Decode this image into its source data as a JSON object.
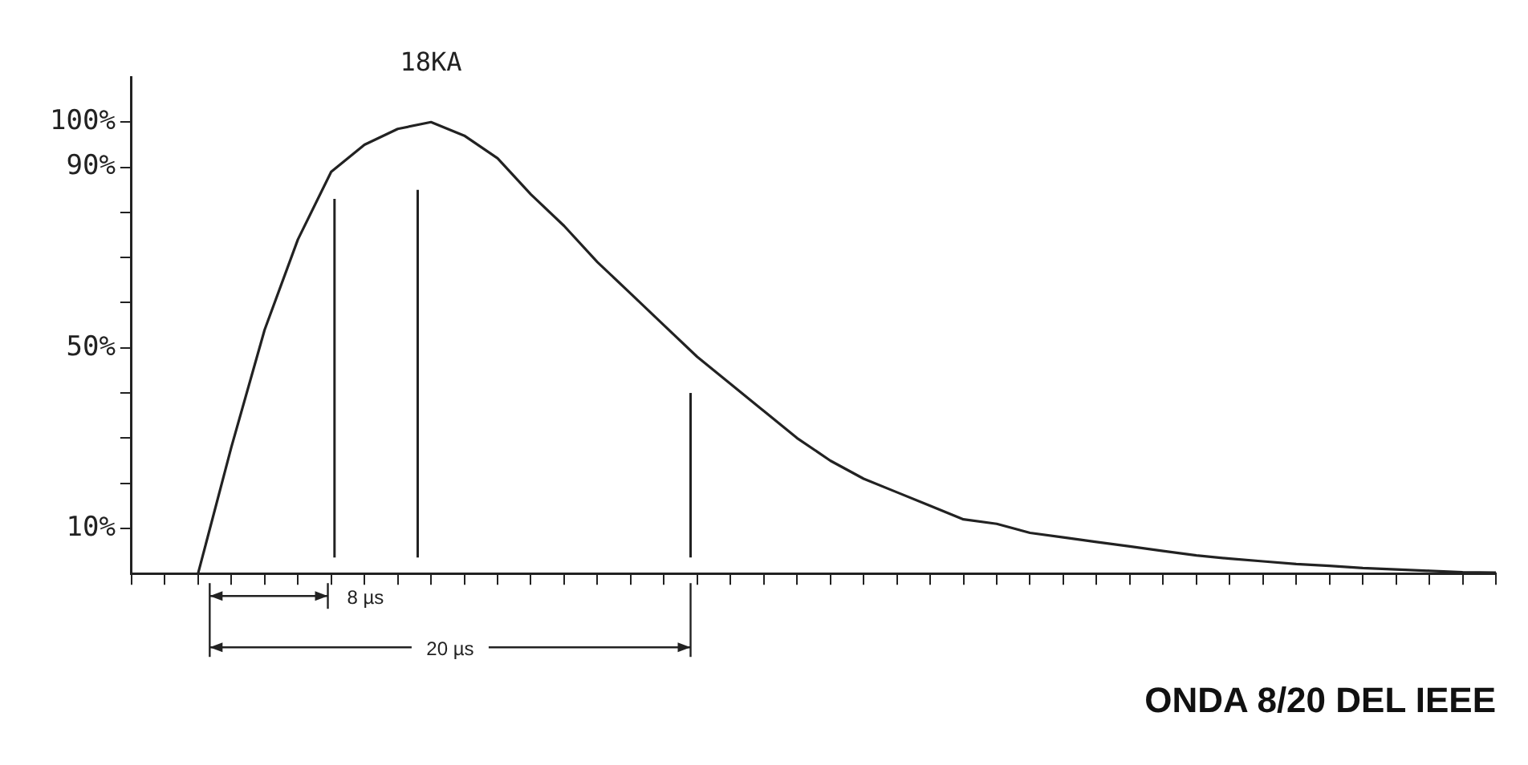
{
  "chart_data": {
    "type": "line",
    "title": "ONDA 8/20 DEL IEEE",
    "categories": [
      null,
      null,
      null,
      null,
      null,
      null,
      null,
      null,
      null,
      null,
      null,
      null,
      null,
      null,
      null,
      null,
      null,
      null,
      null,
      null,
      null,
      null,
      null,
      null,
      null,
      null,
      null,
      null,
      null,
      null,
      null,
      null,
      null,
      null,
      null,
      null,
      null,
      null,
      null,
      null,
      null,
      null
    ],
    "series": [
      {
        "color": "#222222",
        "values": [
          null,
          null,
          0,
          28,
          54,
          74,
          89,
          95,
          98.5,
          100,
          97,
          92,
          84,
          77,
          69,
          62,
          55,
          48,
          42,
          36,
          30,
          25,
          21,
          18,
          15,
          12,
          11,
          9,
          8,
          7,
          6,
          5,
          4,
          3.3,
          2.7,
          2.1,
          1.7,
          1.2,
          0.9,
          0.6,
          0.3,
          0.2
        ]
      }
    ],
    "ylim": [
      0,
      110
    ],
    "yticks": [
      {
        "value": 10,
        "label": "10%"
      },
      {
        "value": 20,
        "label": null
      },
      {
        "value": 30,
        "label": null
      },
      {
        "value": 40,
        "label": null
      },
      {
        "value": 50,
        "label": "50%"
      },
      {
        "value": 60,
        "label": null
      },
      {
        "value": 70,
        "label": null
      },
      {
        "value": 80,
        "label": null
      },
      {
        "value": 90,
        "label": "90%"
      },
      {
        "value": 100,
        "label": "100%"
      }
    ],
    "tick_labels": "y",
    "grid": false,
    "legend": false,
    "marker": "none",
    "line_style": "solid",
    "annotations": [
      "18KA",
      "8 µs",
      "20 µs"
    ]
  }
}
